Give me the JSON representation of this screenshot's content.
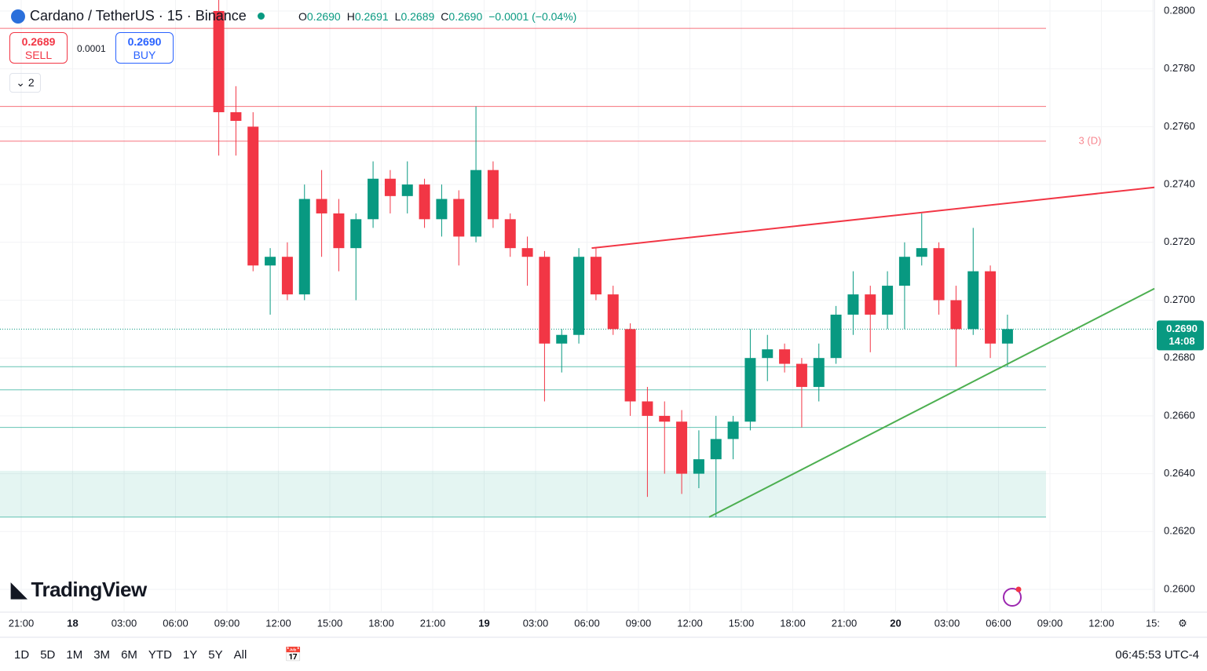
{
  "header": {
    "symbol": "Cardano / TetherUS · 15 · Binance",
    "ohlc": [
      {
        "key": "O",
        "value": "0.2690"
      },
      {
        "key": "H",
        "value": "0.2691"
      },
      {
        "key": "L",
        "value": "0.2689"
      },
      {
        "key": "C",
        "value": "0.2690"
      }
    ],
    "change": "−0.0001 (−0.04%)",
    "sell_price": "0.2689",
    "sell_label": "SELL",
    "spread": "0.0001",
    "buy_price": "0.2690",
    "buy_label": "BUY",
    "indicators_count": "2"
  },
  "chart_data": {
    "type": "candlestick",
    "x": [
      "18 08:00",
      "18 09:00",
      "18 10:00",
      "18 11:00",
      "18 12:00",
      "18 13:00",
      "18 14:00",
      "18 15:00",
      "18 16:00",
      "18 17:00",
      "18 18:00",
      "18 19:00",
      "18 20:00",
      "18 21:00",
      "18 22:00",
      "18 23:00",
      "19 00:00",
      "19 01:00",
      "19 02:00",
      "19 03:00",
      "19 04:00",
      "19 05:00",
      "19 06:00",
      "19 07:00",
      "19 08:00",
      "19 09:00",
      "19 10:00",
      "19 11:00",
      "19 12:00",
      "19 13:00",
      "19 14:00",
      "19 15:00",
      "19 16:00",
      "19 17:00",
      "19 18:00",
      "19 19:00",
      "19 20:00",
      "19 21:00",
      "19 22:00",
      "19 23:00",
      "20 00:00",
      "20 01:00",
      "20 02:00",
      "20 03:00",
      "20 04:00",
      "20 05:00",
      "20 06:00"
    ],
    "open": [
      0.28,
      0.2765,
      0.276,
      0.2712,
      0.2715,
      0.2702,
      0.2735,
      0.273,
      0.2718,
      0.2728,
      0.2742,
      0.2736,
      0.274,
      0.2728,
      0.2735,
      0.2722,
      0.2745,
      0.2728,
      0.2718,
      0.2715,
      0.2685,
      0.2688,
      0.2715,
      0.2702,
      0.269,
      0.2665,
      0.266,
      0.2658,
      0.264,
      0.2645,
      0.2652,
      0.2658,
      0.268,
      0.2683,
      0.2678,
      0.267,
      0.268,
      0.2695,
      0.2702,
      0.2695,
      0.2705,
      0.2715,
      0.2718,
      0.27,
      0.269,
      0.271,
      0.2685
    ],
    "high": [
      0.2805,
      0.2774,
      0.2765,
      0.2718,
      0.272,
      0.274,
      0.2745,
      0.2735,
      0.273,
      0.2748,
      0.2745,
      0.2748,
      0.2742,
      0.274,
      0.2738,
      0.2767,
      0.2748,
      0.273,
      0.2722,
      0.2717,
      0.269,
      0.2718,
      0.2718,
      0.2705,
      0.2692,
      0.267,
      0.2665,
      0.2662,
      0.2655,
      0.266,
      0.266,
      0.269,
      0.2688,
      0.2685,
      0.268,
      0.2685,
      0.2698,
      0.271,
      0.2705,
      0.271,
      0.272,
      0.273,
      0.272,
      0.2705,
      0.2725,
      0.2712,
      0.2695
    ],
    "low": [
      0.275,
      0.275,
      0.271,
      0.2695,
      0.27,
      0.27,
      0.2715,
      0.271,
      0.27,
      0.2725,
      0.273,
      0.273,
      0.2725,
      0.2722,
      0.2712,
      0.272,
      0.2725,
      0.2715,
      0.2705,
      0.2665,
      0.2675,
      0.2685,
      0.27,
      0.2688,
      0.266,
      0.2632,
      0.264,
      0.2633,
      0.2635,
      0.2625,
      0.2645,
      0.2655,
      0.2672,
      0.2675,
      0.2656,
      0.2665,
      0.2678,
      0.2688,
      0.2682,
      0.269,
      0.269,
      0.2712,
      0.2695,
      0.2677,
      0.2688,
      0.268,
      0.2677
    ],
    "close": [
      0.2765,
      0.2762,
      0.2712,
      0.2715,
      0.2702,
      0.2735,
      0.273,
      0.2718,
      0.2728,
      0.2742,
      0.2736,
      0.274,
      0.2728,
      0.2735,
      0.2722,
      0.2745,
      0.2728,
      0.2718,
      0.2715,
      0.2685,
      0.2688,
      0.2715,
      0.2702,
      0.269,
      0.2665,
      0.266,
      0.2658,
      0.264,
      0.2645,
      0.2652,
      0.2658,
      0.268,
      0.2683,
      0.2678,
      0.267,
      0.268,
      0.2695,
      0.2702,
      0.2695,
      0.2705,
      0.2715,
      0.2718,
      0.27,
      0.269,
      0.271,
      0.2685,
      0.269
    ],
    "up_color": "#089981",
    "down_color": "#f23645",
    "ylim": [
      0.26,
      0.28
    ],
    "yticks": [
      {
        "value": 0.28,
        "label": "0.2800"
      },
      {
        "value": 0.278,
        "label": "0.2780"
      },
      {
        "value": 0.276,
        "label": "0.2760"
      },
      {
        "value": 0.274,
        "label": "0.2740"
      },
      {
        "value": 0.272,
        "label": "0.2720"
      },
      {
        "value": 0.27,
        "label": "0.2700"
      },
      {
        "value": 0.268,
        "label": "0.2680"
      },
      {
        "value": 0.266,
        "label": "0.2660"
      },
      {
        "value": 0.264,
        "label": "0.2640"
      },
      {
        "value": 0.262,
        "label": "0.2620"
      },
      {
        "value": 0.26,
        "label": "0.2600"
      }
    ],
    "xtick_labels": [
      "21:00",
      "18",
      "03:00",
      "06:00",
      "09:00",
      "12:00",
      "15:00",
      "18:00",
      "21:00",
      "19",
      "03:00",
      "06:00",
      "09:00",
      "12:00",
      "15:00",
      "18:00",
      "21:00",
      "20",
      "03:00",
      "06:00",
      "09:00",
      "12:00",
      "15:"
    ],
    "last_price": {
      "value": 0.269,
      "label": "0.2690",
      "countdown": "14:08",
      "color": "#089981"
    },
    "hlines": [
      {
        "value": 0.2794,
        "color": "#f23645"
      },
      {
        "value": 0.2767,
        "color": "#f23645"
      },
      {
        "value": 0.2755,
        "color": "#f23645",
        "label": "3 (D)"
      },
      {
        "value": 0.2677,
        "color": "#22ab94"
      },
      {
        "value": 0.2669,
        "color": "#22ab94"
      },
      {
        "value": 0.2656,
        "color": "#22ab94"
      },
      {
        "value": 0.2625,
        "color": "#22ab94"
      }
    ],
    "zone": {
      "low": 0.2625,
      "high": 0.2641,
      "color": "#22ab94"
    },
    "trendlines": [
      {
        "x": [
          "19 06:15",
          "20 15:06"
        ],
        "y": [
          0.2718,
          0.2739
        ],
        "color": "#f23645"
      },
      {
        "x": [
          "19 13:06",
          "20 15:06"
        ],
        "y": [
          0.2625,
          0.2704
        ],
        "color": "#4caf50"
      }
    ]
  },
  "footer": {
    "logo": "TradingView",
    "ranges": [
      "1D",
      "5D",
      "1M",
      "3M",
      "6M",
      "YTD",
      "1Y",
      "5Y",
      "All"
    ],
    "clock": "06:45:53 UTC-4"
  }
}
